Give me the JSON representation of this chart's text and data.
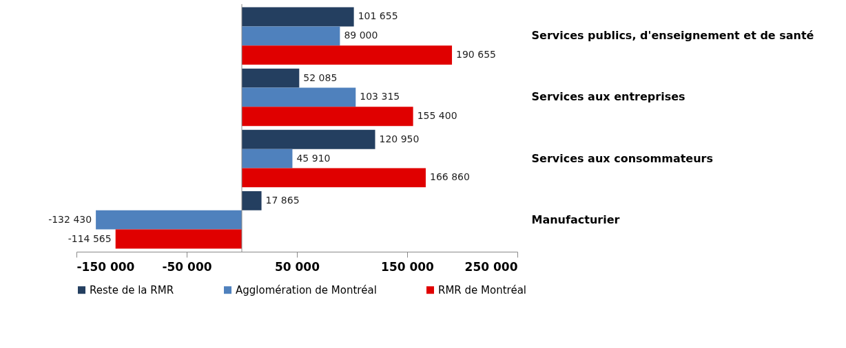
{
  "chart_data": {
    "type": "bar",
    "orientation": "horizontal",
    "categories": [
      "Services publics, d'enseignement et de santé",
      "Services aux entreprises",
      "Services aux consommateurs",
      "Manufacturier"
    ],
    "series": [
      {
        "name": "Reste de la RMR",
        "color": "#243f60",
        "values": [
          101655,
          52085,
          120950,
          17865
        ],
        "value_labels": [
          "101 655",
          "52 085",
          "120 950",
          "17 865"
        ]
      },
      {
        "name": "Agglomération de Montréal",
        "color": "#4f81bd",
        "values": [
          89000,
          103315,
          45910,
          -132430
        ],
        "value_labels": [
          "89 000",
          "103 315",
          "45 910",
          "-132 430"
        ]
      },
      {
        "name": "RMR de Montréal",
        "color": "#e00000",
        "values": [
          190655,
          155400,
          166860,
          -114565
        ],
        "value_labels": [
          "190 655",
          "155 400",
          "166 860",
          "-114 565"
        ]
      }
    ],
    "xlim": [
      -150000,
      250000
    ],
    "xticks": [
      {
        "value": -150000,
        "label": "-150 000"
      },
      {
        "value": -50000,
        "label": "-50 000"
      },
      {
        "value": 50000,
        "label": "50 000"
      },
      {
        "value": 150000,
        "label": "150 000"
      },
      {
        "value": 250000,
        "label": "250 000"
      }
    ],
    "grid": false,
    "legend": "bottom"
  }
}
